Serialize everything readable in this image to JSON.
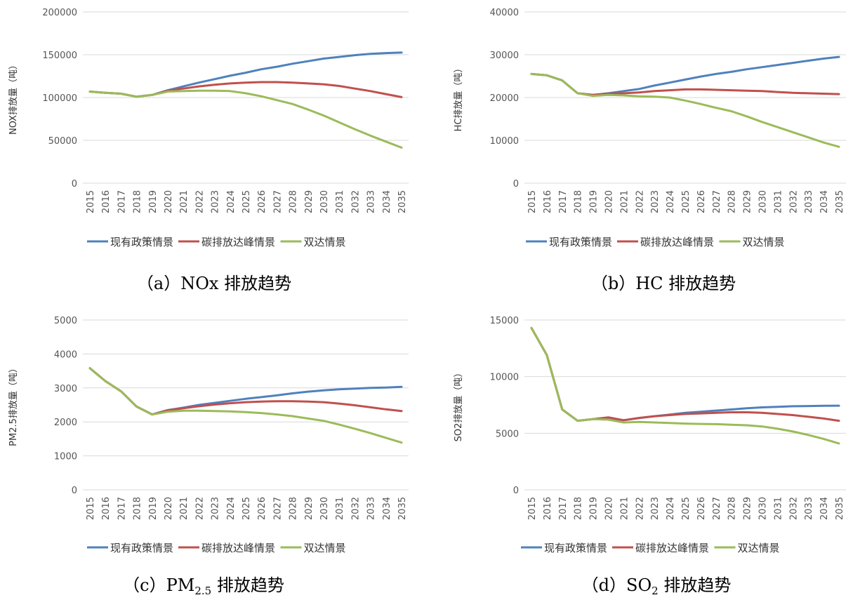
{
  "chart_data": [
    {
      "type": "line",
      "title": "",
      "caption": "（a）NOx 排放趋势",
      "ylabel": "NOX排放量（吨）",
      "ylim": [
        0,
        200000
      ],
      "yticks": [
        0,
        50000,
        100000,
        150000,
        200000
      ],
      "categories": [
        "2015",
        "2016",
        "2017",
        "2018",
        "2019",
        "2020",
        "2021",
        "2022",
        "2023",
        "2024",
        "2025",
        "2026",
        "2027",
        "2028",
        "2029",
        "2030",
        "2031",
        "2032",
        "2033",
        "2034",
        "2035"
      ],
      "series": [
        {
          "name": "现有政策情景",
          "color": "#4f81bd",
          "values": [
            107000,
            105500,
            104500,
            101000,
            103000,
            108500,
            113000,
            117500,
            121500,
            125500,
            129000,
            133000,
            136000,
            139500,
            142500,
            145500,
            147500,
            149500,
            151000,
            152000,
            152500
          ]
        },
        {
          "name": "碳排放达峰情景",
          "color": "#c0504d",
          "values": [
            107000,
            105500,
            104500,
            101000,
            103000,
            108000,
            110500,
            113000,
            115000,
            116500,
            117500,
            118000,
            118000,
            117500,
            116500,
            115500,
            113500,
            110500,
            107500,
            104000,
            100500
          ]
        },
        {
          "name": "双达情景",
          "color": "#9bbb59",
          "values": [
            107000,
            105500,
            104500,
            101000,
            103000,
            107000,
            107500,
            108000,
            108000,
            107500,
            105000,
            101500,
            97000,
            92500,
            86000,
            79000,
            71000,
            63000,
            55500,
            48500,
            41500
          ]
        }
      ]
    },
    {
      "type": "line",
      "title": "",
      "caption": "（b）HC 排放趋势",
      "ylabel": "HC排放量（吨）",
      "ylim": [
        0,
        40000
      ],
      "yticks": [
        0,
        10000,
        20000,
        30000,
        40000
      ],
      "categories": [
        "2015",
        "2016",
        "2017",
        "2018",
        "2019",
        "2020",
        "2021",
        "2022",
        "2023",
        "2024",
        "2025",
        "2026",
        "2027",
        "2028",
        "2029",
        "2030",
        "2031",
        "2032",
        "2033",
        "2034",
        "2035"
      ],
      "series": [
        {
          "name": "现有政策情景",
          "color": "#4f81bd",
          "values": [
            25500,
            25200,
            24000,
            21000,
            20600,
            21000,
            21500,
            22000,
            22800,
            23500,
            24200,
            24900,
            25500,
            26000,
            26600,
            27100,
            27600,
            28100,
            28600,
            29100,
            29500
          ]
        },
        {
          "name": "碳排放达峰情景",
          "color": "#c0504d",
          "values": [
            25500,
            25200,
            24000,
            21000,
            20600,
            20900,
            21000,
            21200,
            21500,
            21700,
            21900,
            21900,
            21800,
            21700,
            21600,
            21500,
            21300,
            21100,
            21000,
            20900,
            20800
          ]
        },
        {
          "name": "双达情景",
          "color": "#9bbb59",
          "values": [
            25500,
            25200,
            24000,
            21000,
            20400,
            20600,
            20500,
            20300,
            20200,
            20000,
            19300,
            18500,
            17600,
            16800,
            15600,
            14300,
            13100,
            11900,
            10700,
            9500,
            8500
          ]
        }
      ]
    },
    {
      "type": "line",
      "title": "",
      "caption_main": "（c）PM",
      "caption_sub": "2.5",
      "caption_tail": " 排放趋势",
      "ylabel": "PM2.5排放量（吨）",
      "ylim": [
        0,
        5000
      ],
      "yticks": [
        0,
        1000,
        2000,
        3000,
        4000,
        5000
      ],
      "categories": [
        "2015",
        "2016",
        "2017",
        "2018",
        "2019",
        "2020",
        "2021",
        "2022",
        "2023",
        "2024",
        "2025",
        "2026",
        "2027",
        "2028",
        "2029",
        "2030",
        "2031",
        "2032",
        "2033",
        "2034",
        "2035"
      ],
      "series": [
        {
          "name": "现有政策情景",
          "color": "#4f81bd",
          "values": [
            3580,
            3200,
            2900,
            2450,
            2220,
            2350,
            2420,
            2500,
            2560,
            2620,
            2680,
            2730,
            2780,
            2840,
            2890,
            2930,
            2960,
            2980,
            3000,
            3010,
            3030
          ]
        },
        {
          "name": "碳排放达峰情景",
          "color": "#c0504d",
          "values": [
            3580,
            3200,
            2900,
            2450,
            2220,
            2340,
            2400,
            2460,
            2510,
            2550,
            2580,
            2600,
            2610,
            2610,
            2600,
            2580,
            2540,
            2490,
            2430,
            2370,
            2320
          ]
        },
        {
          "name": "双达情景",
          "color": "#9bbb59",
          "values": [
            3580,
            3200,
            2900,
            2450,
            2220,
            2300,
            2330,
            2330,
            2320,
            2310,
            2290,
            2260,
            2220,
            2170,
            2100,
            2030,
            1920,
            1800,
            1670,
            1530,
            1390
          ]
        }
      ]
    },
    {
      "type": "line",
      "title": "",
      "caption_main": "（d）SO",
      "caption_sub": "2",
      "caption_tail": " 排放趋势",
      "ylabel": "SO2排放量（吨）",
      "ylim": [
        0,
        15000
      ],
      "yticks": [
        0,
        5000,
        10000,
        15000
      ],
      "categories": [
        "2015",
        "2016",
        "2017",
        "2018",
        "2019",
        "2020",
        "2021",
        "2022",
        "2023",
        "2024",
        "2025",
        "2026",
        "2027",
        "2028",
        "2029",
        "2030",
        "2031",
        "2032",
        "2033",
        "2034",
        "2035"
      ],
      "series": [
        {
          "name": "现有政策情景",
          "color": "#4f81bd",
          "values": [
            14300,
            11900,
            7100,
            6100,
            6250,
            6300,
            6150,
            6350,
            6500,
            6650,
            6800,
            6900,
            7000,
            7100,
            7200,
            7280,
            7330,
            7380,
            7400,
            7420,
            7430
          ]
        },
        {
          "name": "碳排放达峰情景",
          "color": "#c0504d",
          "values": [
            14300,
            11900,
            7100,
            6100,
            6250,
            6400,
            6150,
            6350,
            6500,
            6600,
            6700,
            6750,
            6800,
            6850,
            6850,
            6800,
            6700,
            6600,
            6450,
            6300,
            6100
          ]
        },
        {
          "name": "双达情景",
          "color": "#9bbb59",
          "values": [
            14300,
            11900,
            7100,
            6100,
            6250,
            6200,
            5950,
            6000,
            5950,
            5900,
            5850,
            5820,
            5800,
            5750,
            5700,
            5600,
            5400,
            5150,
            4850,
            4500,
            4100
          ]
        }
      ]
    }
  ]
}
